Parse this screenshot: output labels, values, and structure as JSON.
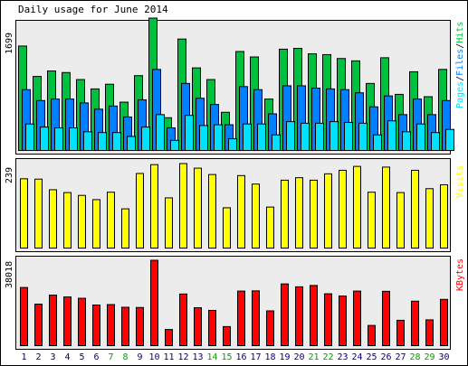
{
  "title": "Daily usage for June 2014",
  "colors": {
    "hits": "#00c040",
    "files": "#0080ff",
    "pages": "#00e0ff",
    "visits": "#ffff00",
    "kbytes": "#ff0000",
    "weekend": "#00a000",
    "weekday": "#000080",
    "panel": "#ececec",
    "border": "#000000"
  },
  "chart_data": [
    {
      "type": "bar",
      "panel": "hits-files-pages",
      "ymax_label": "1699",
      "legend": {
        "pages": "Pages",
        "sep1": "/",
        "files": "Files",
        "sep2": "/",
        "hits": "Hits"
      },
      "categories": [
        "1",
        "2",
        "3",
        "4",
        "5",
        "6",
        "7",
        "8",
        "9",
        "10",
        "11",
        "12",
        "13",
        "14",
        "15",
        "16",
        "17",
        "18",
        "19",
        "20",
        "21",
        "22",
        "23",
        "24",
        "25",
        "26",
        "27",
        "28",
        "29",
        "30"
      ],
      "weekend": [
        false,
        false,
        false,
        false,
        false,
        false,
        true,
        true,
        false,
        false,
        false,
        false,
        false,
        true,
        true,
        false,
        false,
        false,
        false,
        false,
        true,
        true,
        false,
        false,
        false,
        false,
        false,
        true,
        true,
        false
      ],
      "ymax": 1699,
      "series": [
        {
          "name": "Hits",
          "values": [
            1340,
            950,
            1020,
            1000,
            910,
            790,
            850,
            620,
            960,
            1699,
            420,
            1430,
            1060,
            910,
            490,
            1270,
            1200,
            660,
            1300,
            1310,
            1240,
            1230,
            1180,
            1150,
            860,
            1190,
            720,
            1010,
            690,
            1040
          ]
        },
        {
          "name": "Files",
          "values": [
            780,
            640,
            660,
            660,
            610,
            530,
            570,
            430,
            650,
            1040,
            290,
            860,
            670,
            590,
            330,
            820,
            780,
            470,
            830,
            830,
            800,
            790,
            780,
            740,
            560,
            700,
            460,
            660,
            460,
            640
          ]
        },
        {
          "name": "Pages",
          "values": [
            340,
            300,
            290,
            290,
            240,
            230,
            230,
            180,
            300,
            460,
            130,
            450,
            320,
            330,
            150,
            340,
            340,
            200,
            370,
            350,
            350,
            370,
            360,
            350,
            200,
            380,
            240,
            340,
            230,
            270
          ]
        }
      ]
    },
    {
      "type": "bar",
      "panel": "visits",
      "ymax_label": "239",
      "legend": {
        "visits": "Visits"
      },
      "categories": [
        "1",
        "2",
        "3",
        "4",
        "5",
        "6",
        "7",
        "8",
        "9",
        "10",
        "11",
        "12",
        "13",
        "14",
        "15",
        "16",
        "17",
        "18",
        "19",
        "20",
        "21",
        "22",
        "23",
        "24",
        "25",
        "26",
        "27",
        "28",
        "29",
        "30"
      ],
      "ymax": 239,
      "series": [
        {
          "name": "Visits",
          "values": [
            196,
            195,
            165,
            157,
            149,
            137,
            158,
            111,
            211,
            236,
            142,
            239,
            226,
            208,
            114,
            205,
            181,
            116,
            192,
            199,
            192,
            210,
            220,
            231,
            158,
            229,
            157,
            220,
            168,
            179
          ]
        }
      ]
    },
    {
      "type": "bar",
      "panel": "kbytes",
      "ymax_label": "38018",
      "legend": {
        "kbytes": "KBytes"
      },
      "categories": [
        "1",
        "2",
        "3",
        "4",
        "5",
        "6",
        "7",
        "8",
        "9",
        "10",
        "11",
        "12",
        "13",
        "14",
        "15",
        "16",
        "17",
        "18",
        "19",
        "20",
        "21",
        "22",
        "23",
        "24",
        "25",
        "26",
        "27",
        "28",
        "29",
        "30"
      ],
      "ymax": 38018,
      "series": [
        {
          "name": "KBytes",
          "values": [
            25900,
            18500,
            22500,
            21700,
            21100,
            18100,
            18300,
            17100,
            17000,
            38018,
            7200,
            23000,
            16900,
            15700,
            8500,
            24300,
            24400,
            15500,
            27500,
            26200,
            26800,
            23100,
            22100,
            24300,
            9000,
            24200,
            11300,
            19800,
            11500,
            20600
          ]
        }
      ]
    }
  ]
}
